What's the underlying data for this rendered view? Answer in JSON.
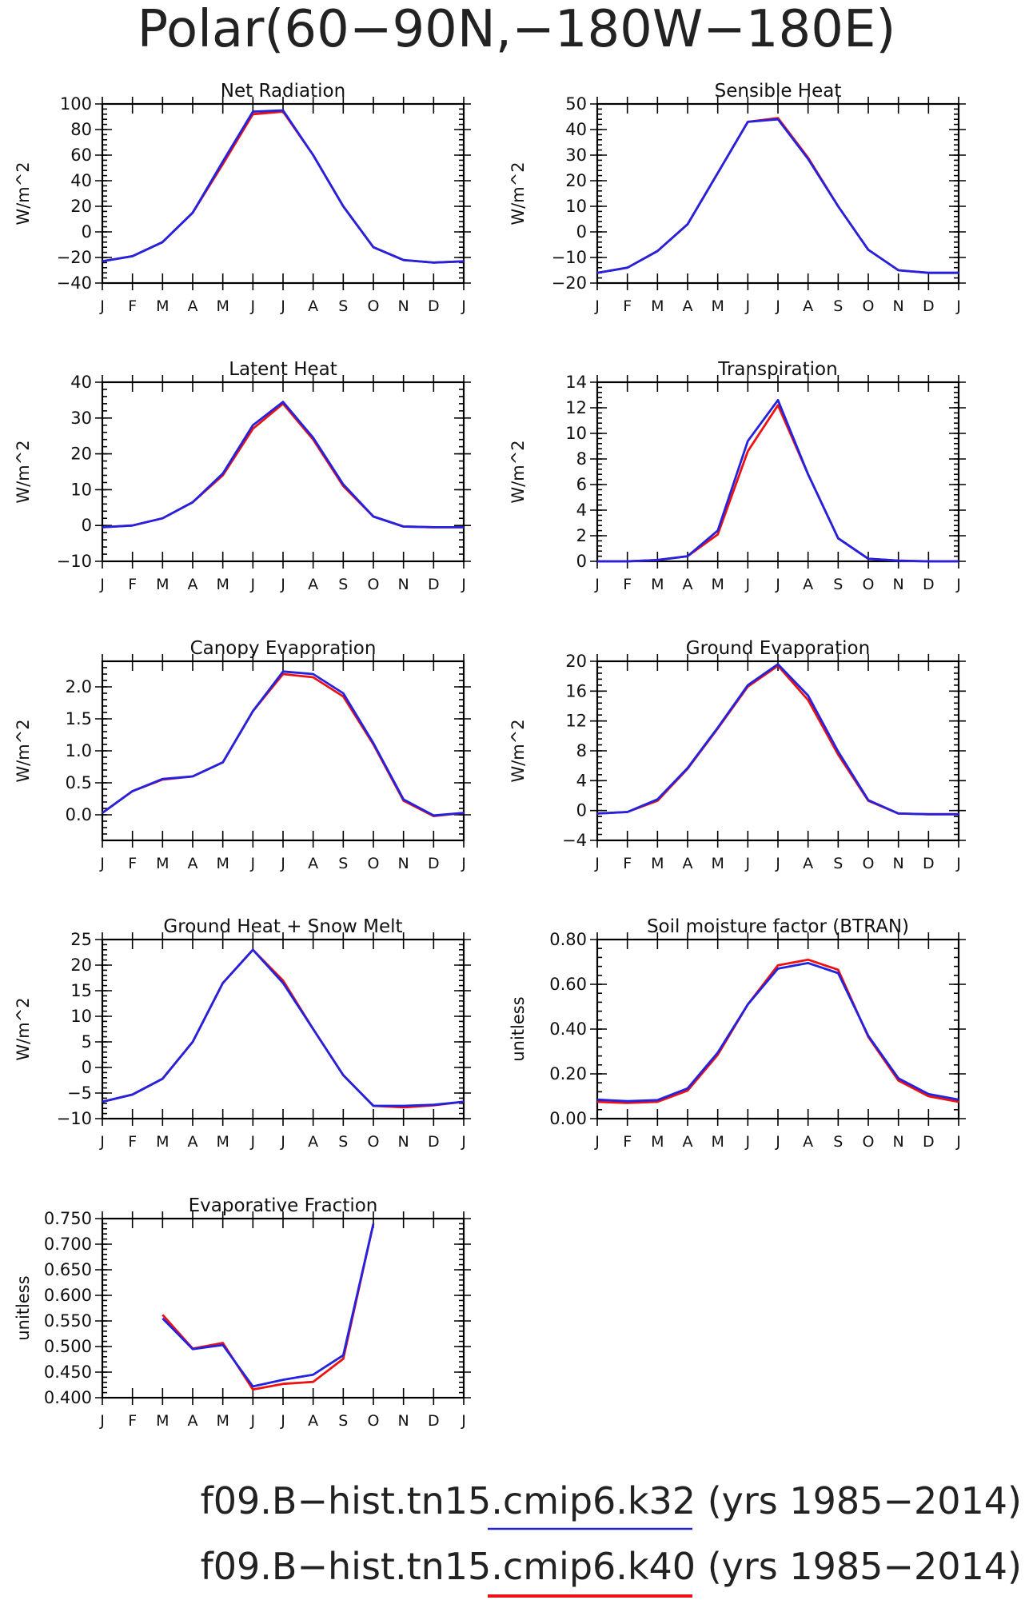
{
  "figure": {
    "title": "Polar(60−90N,−180W−180E)",
    "legend": [
      {
        "label": "f09.B−hist.tn15.cmip6.k32 (yrs 1985−2014)",
        "color": "#2222e0"
      },
      {
        "label": "f09.B−hist.tn15.cmip6.k40 (yrs 1985−2014)",
        "color": "#ee1111"
      }
    ]
  },
  "chart_data": [
    {
      "type": "line",
      "title": "Net Radiation",
      "ylabel": "W/m^2",
      "categories": [
        "J",
        "F",
        "M",
        "A",
        "M",
        "J",
        "J",
        "A",
        "S",
        "O",
        "N",
        "D",
        "J"
      ],
      "ylim": [
        -40,
        100
      ],
      "yticks": [
        -40,
        -20,
        0,
        20,
        40,
        60,
        80,
        100
      ],
      "ytick_labels": [
        "−40",
        "−20",
        "0",
        "20",
        "40",
        "60",
        "80",
        "100"
      ],
      "series": [
        {
          "color": "#ee1111",
          "values": [
            -23,
            -19,
            -8,
            15,
            53,
            92,
            94,
            60,
            20,
            -12,
            -22,
            -24,
            -23
          ]
        },
        {
          "color": "#2222e0",
          "values": [
            -23,
            -19,
            -8,
            15,
            55,
            94,
            95,
            60,
            20,
            -12,
            -22,
            -24,
            -23
          ]
        }
      ]
    },
    {
      "type": "line",
      "title": "Sensible Heat",
      "ylabel": "W/m^2",
      "categories": [
        "J",
        "F",
        "M",
        "A",
        "M",
        "J",
        "J",
        "A",
        "S",
        "O",
        "N",
        "D",
        "J"
      ],
      "ylim": [
        -20,
        50
      ],
      "yticks": [
        -20,
        -10,
        0,
        10,
        20,
        30,
        40,
        50
      ],
      "ytick_labels": [
        "−20",
        "−10",
        "0",
        "10",
        "20",
        "30",
        "40",
        "50"
      ],
      "series": [
        {
          "color": "#ee1111",
          "values": [
            -16,
            -14,
            -7.5,
            3,
            23,
            43,
            44.5,
            29,
            10,
            -7,
            -15,
            -16,
            -16
          ]
        },
        {
          "color": "#2222e0",
          "values": [
            -16,
            -14,
            -7.5,
            3,
            23,
            43,
            44,
            28.5,
            10,
            -7,
            -15,
            -16,
            -16
          ]
        }
      ]
    },
    {
      "type": "line",
      "title": "Latent Heat",
      "ylabel": "W/m^2",
      "categories": [
        "J",
        "F",
        "M",
        "A",
        "M",
        "J",
        "J",
        "A",
        "S",
        "O",
        "N",
        "D",
        "J"
      ],
      "ylim": [
        -10,
        40
      ],
      "yticks": [
        -10,
        0,
        10,
        20,
        30,
        40
      ],
      "ytick_labels": [
        "−10",
        "0",
        "10",
        "20",
        "30",
        "40"
      ],
      "series": [
        {
          "color": "#ee1111",
          "values": [
            -0.5,
            0,
            2,
            6.5,
            14,
            27,
            34,
            24,
            11,
            2.5,
            -0.3,
            -0.5,
            -0.5
          ]
        },
        {
          "color": "#2222e0",
          "values": [
            -0.5,
            0,
            2,
            6.5,
            14.5,
            28,
            34.5,
            24.5,
            11.5,
            2.5,
            -0.3,
            -0.5,
            -0.5
          ]
        }
      ]
    },
    {
      "type": "line",
      "title": "Transpiration",
      "ylabel": "W/m^2",
      "categories": [
        "J",
        "F",
        "M",
        "A",
        "M",
        "J",
        "J",
        "A",
        "S",
        "O",
        "N",
        "D",
        "J"
      ],
      "ylim": [
        0,
        14
      ],
      "yticks": [
        0,
        2,
        4,
        6,
        8,
        10,
        12,
        14
      ],
      "ytick_labels": [
        "0",
        "2",
        "4",
        "6",
        "8",
        "10",
        "12",
        "14"
      ],
      "series": [
        {
          "color": "#ee1111",
          "values": [
            0,
            0,
            0.1,
            0.4,
            2.1,
            8.6,
            12.2,
            6.8,
            1.8,
            0.2,
            0.05,
            0,
            0
          ]
        },
        {
          "color": "#2222e0",
          "values": [
            0,
            0,
            0.1,
            0.4,
            2.4,
            9.4,
            12.6,
            6.8,
            1.8,
            0.2,
            0.05,
            0,
            0
          ]
        }
      ]
    },
    {
      "type": "line",
      "title": "Canopy Evaporation",
      "ylabel": "W/m^2",
      "categories": [
        "J",
        "F",
        "M",
        "A",
        "M",
        "J",
        "J",
        "A",
        "S",
        "O",
        "N",
        "D",
        "J"
      ],
      "ylim": [
        -0.4,
        2.4
      ],
      "yticks": [
        0.0,
        0.5,
        1.0,
        1.5,
        2.0
      ],
      "ytick_labels": [
        "0.0",
        "0.5",
        "1.0",
        "1.5",
        "2.0"
      ],
      "series": [
        {
          "color": "#ee1111",
          "values": [
            0.03,
            0.37,
            0.55,
            0.6,
            0.82,
            1.62,
            2.2,
            2.15,
            1.85,
            1.1,
            0.22,
            -0.02,
            0.03
          ]
        },
        {
          "color": "#2222e0",
          "values": [
            0.03,
            0.37,
            0.56,
            0.6,
            0.82,
            1.62,
            2.24,
            2.2,
            1.9,
            1.12,
            0.24,
            -0.01,
            0.03
          ]
        }
      ]
    },
    {
      "type": "line",
      "title": "Ground Evaporation",
      "ylabel": "W/m^2",
      "categories": [
        "J",
        "F",
        "M",
        "A",
        "M",
        "J",
        "J",
        "A",
        "S",
        "O",
        "N",
        "D",
        "J"
      ],
      "ylim": [
        -4,
        20
      ],
      "yticks": [
        -4,
        0,
        4,
        8,
        12,
        16,
        20
      ],
      "ytick_labels": [
        "−4",
        "0",
        "4",
        "8",
        "12",
        "16",
        "20"
      ],
      "series": [
        {
          "color": "#ee1111",
          "values": [
            -0.4,
            -0.2,
            1.3,
            5.6,
            11,
            16.6,
            19.4,
            14.8,
            7.5,
            1.3,
            -0.4,
            -0.5,
            -0.5
          ]
        },
        {
          "color": "#2222e0",
          "values": [
            -0.4,
            -0.2,
            1.5,
            5.7,
            11.1,
            16.8,
            19.6,
            15.4,
            7.9,
            1.4,
            -0.4,
            -0.5,
            -0.5
          ]
        }
      ]
    },
    {
      "type": "line",
      "title": "Ground Heat + Snow Melt",
      "ylabel": "W/m^2",
      "categories": [
        "J",
        "F",
        "M",
        "A",
        "M",
        "J",
        "J",
        "A",
        "S",
        "O",
        "N",
        "D",
        "J"
      ],
      "ylim": [
        -10,
        25
      ],
      "yticks": [
        -10,
        -5,
        0,
        5,
        10,
        15,
        20,
        25
      ],
      "ytick_labels": [
        "−10",
        "−5",
        "0",
        "5",
        "10",
        "15",
        "20",
        "25"
      ],
      "series": [
        {
          "color": "#ee1111",
          "values": [
            -6.7,
            -5.3,
            -2.2,
            5,
            16.5,
            23,
            17,
            7.5,
            -1.5,
            -7.5,
            -7.8,
            -7.4,
            -6.7
          ]
        },
        {
          "color": "#2222e0",
          "values": [
            -6.7,
            -5.3,
            -2.2,
            5,
            16.5,
            23,
            16.5,
            7.5,
            -1.5,
            -7.5,
            -7.5,
            -7.3,
            -6.7
          ]
        }
      ]
    },
    {
      "type": "line",
      "title": "Soil moisture factor (BTRAN)",
      "ylabel": "unitless",
      "categories": [
        "J",
        "F",
        "M",
        "A",
        "M",
        "J",
        "J",
        "A",
        "S",
        "O",
        "N",
        "D",
        "J"
      ],
      "ylim": [
        0,
        0.8
      ],
      "yticks": [
        0,
        0.2,
        0.4,
        0.6,
        0.8
      ],
      "ytick_labels": [
        "0.00",
        "0.20",
        "0.40",
        "0.60",
        "0.80"
      ],
      "series": [
        {
          "color": "#ee1111",
          "values": [
            0.075,
            0.07,
            0.075,
            0.125,
            0.285,
            0.51,
            0.685,
            0.71,
            0.665,
            0.365,
            0.17,
            0.1,
            0.075
          ]
        },
        {
          "color": "#2222e0",
          "values": [
            0.085,
            0.078,
            0.083,
            0.135,
            0.295,
            0.51,
            0.67,
            0.695,
            0.65,
            0.37,
            0.18,
            0.11,
            0.085
          ]
        }
      ]
    },
    {
      "type": "line",
      "title": "Evaporative Fraction",
      "ylabel": "unitless",
      "categories": [
        "J",
        "F",
        "M",
        "A",
        "M",
        "J",
        "J",
        "A",
        "S",
        "O",
        "N",
        "D",
        "J"
      ],
      "ylim": [
        0.4,
        0.75
      ],
      "yticks": [
        0.4,
        0.45,
        0.5,
        0.55,
        0.6,
        0.65,
        0.7,
        0.75
      ],
      "ytick_labels": [
        "0.400",
        "0.450",
        "0.500",
        "0.550",
        "0.600",
        "0.650",
        "0.700",
        "0.750"
      ],
      "series": [
        {
          "color": "#ee1111",
          "values": [
            null,
            null,
            0.562,
            0.496,
            0.507,
            0.416,
            0.427,
            0.431,
            0.476,
            0.74,
            null,
            null,
            null
          ]
        },
        {
          "color": "#2222e0",
          "values": [
            null,
            null,
            0.555,
            0.495,
            0.503,
            0.422,
            0.435,
            0.445,
            0.483,
            0.74,
            null,
            null,
            null
          ]
        }
      ]
    }
  ]
}
